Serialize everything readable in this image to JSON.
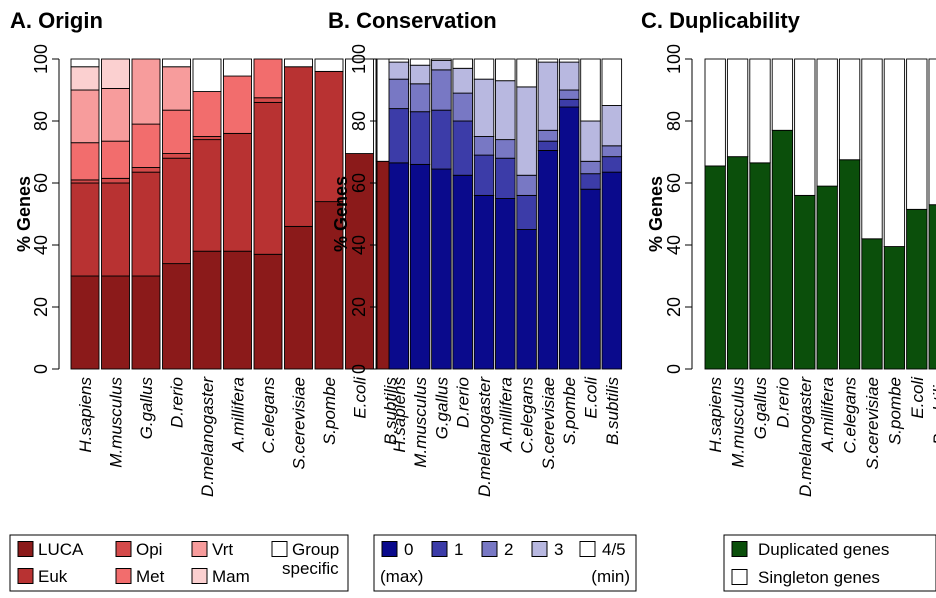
{
  "chart_data": [
    {
      "type": "bar",
      "stacked": true,
      "title": "A. Origin",
      "ylabel": "% Genes",
      "ylim": [
        0,
        100
      ],
      "yticks": [
        "0",
        "20",
        "40",
        "60",
        "80",
        "100"
      ],
      "grid": false,
      "legend_position": "bottom",
      "categories": [
        "H.sapiens",
        "M.musculus",
        "G.gallus",
        "D.rerio",
        "D.melanogaster",
        "A.millifera",
        "C.elegans",
        "S.cerevisiae",
        "S.pombe",
        "E.coli",
        "B.subtilis"
      ],
      "series": [
        {
          "name": "LUCA",
          "color": "#8b1a1a",
          "values": [
            30,
            30,
            30,
            34,
            38,
            38,
            37,
            46,
            54,
            69.5,
            67
          ]
        },
        {
          "name": "Euk",
          "color": "#b83232",
          "values": [
            30,
            30,
            33.5,
            34,
            36,
            38,
            49,
            51.5,
            42,
            0,
            0
          ]
        },
        {
          "name": "Opi",
          "color": "#d44a4a",
          "values": [
            1,
            1.5,
            1.5,
            1.5,
            1,
            0,
            1.5,
            0,
            0,
            0,
            0
          ]
        },
        {
          "name": "Met",
          "color": "#f26d6d",
          "values": [
            12,
            12,
            14,
            14,
            14.5,
            18.5,
            12.5,
            0,
            0,
            0,
            0
          ]
        },
        {
          "name": "Vrt",
          "color": "#f79c9c",
          "values": [
            17,
            17,
            21,
            14,
            0,
            0,
            0,
            0,
            0,
            0,
            0
          ]
        },
        {
          "name": "Mam",
          "color": "#fbd0d0",
          "values": [
            7.5,
            9.5,
            0,
            0,
            0,
            0,
            0,
            0,
            0,
            0,
            0
          ]
        },
        {
          "name": "Group specific",
          "color": "#ffffff",
          "values": [
            2.5,
            0,
            0,
            2.5,
            10.5,
            5.5,
            0,
            2.5,
            4,
            30.5,
            33
          ]
        }
      ],
      "legend": {
        "labels": [
          "LUCA",
          "Opi",
          "Vrt",
          "Group",
          "Euk",
          "Met",
          "Mam",
          "specific"
        ]
      }
    },
    {
      "type": "bar",
      "stacked": true,
      "title": "B. Conservation",
      "ylabel": "% Genes",
      "ylim": [
        0,
        100
      ],
      "yticks": [
        "0",
        "20",
        "40",
        "60",
        "80",
        "100"
      ],
      "grid": false,
      "legend_position": "bottom",
      "categories": [
        "H.sapiens",
        "M.musculus",
        "G.gallus",
        "D.rerio",
        "D.melanogaster",
        "A.millifera",
        "C.elegans",
        "S.cerevisiae",
        "S.pombe",
        "E.coli",
        "B.subtilis"
      ],
      "series": [
        {
          "name": "0",
          "color": "#0a0a8c",
          "values": [
            66.5,
            66,
            64.5,
            62.5,
            56,
            55,
            45,
            70.5,
            84.5,
            58,
            63.5
          ]
        },
        {
          "name": "1",
          "color": "#3c3ca8",
          "values": [
            17.5,
            17,
            19,
            17.5,
            13,
            13,
            11,
            3,
            2.5,
            5,
            5
          ]
        },
        {
          "name": "2",
          "color": "#7878c4",
          "values": [
            9.5,
            9,
            13,
            9,
            6,
            6,
            6.5,
            3.5,
            3,
            4,
            3.5
          ]
        },
        {
          "name": "3",
          "color": "#b8b8e0",
          "values": [
            5.5,
            6,
            3,
            8,
            18.5,
            19,
            28.5,
            22,
            9,
            13,
            13
          ]
        },
        {
          "name": "4/5",
          "color": "#ffffff",
          "values": [
            1,
            2,
            0.5,
            3,
            6.5,
            7,
            9,
            1,
            1,
            20,
            15
          ]
        }
      ],
      "legend": {
        "labels": [
          "0",
          "1",
          "2",
          "3",
          "4/5"
        ],
        "note_left": "(max)",
        "note_right": "(min)"
      }
    },
    {
      "type": "bar",
      "stacked": true,
      "title": "C. Duplicability",
      "ylabel": "% Genes",
      "ylim": [
        0,
        100
      ],
      "yticks": [
        "0",
        "20",
        "40",
        "60",
        "80",
        "100"
      ],
      "grid": false,
      "legend_position": "bottom",
      "categories": [
        "H.sapiens",
        "M.musculus",
        "G.gallus",
        "D.rerio",
        "D.melanogaster",
        "A.millifera",
        "C.elegans",
        "S.cerevisiae",
        "S.pombe",
        "E.coli",
        "B.subtilis"
      ],
      "series": [
        {
          "name": "Duplicated genes",
          "color": "#0b4f0b",
          "values": [
            65.5,
            68.5,
            66.5,
            77,
            56,
            59,
            67.5,
            42,
            39.5,
            51.5,
            53
          ]
        },
        {
          "name": "Singleton genes",
          "color": "#ffffff",
          "values": [
            34.5,
            31.5,
            33.5,
            23,
            44,
            41,
            32.5,
            58,
            60.5,
            48.5,
            47
          ]
        }
      ],
      "legend": {
        "labels": [
          "Duplicated genes",
          "Singleton genes"
        ]
      }
    }
  ]
}
